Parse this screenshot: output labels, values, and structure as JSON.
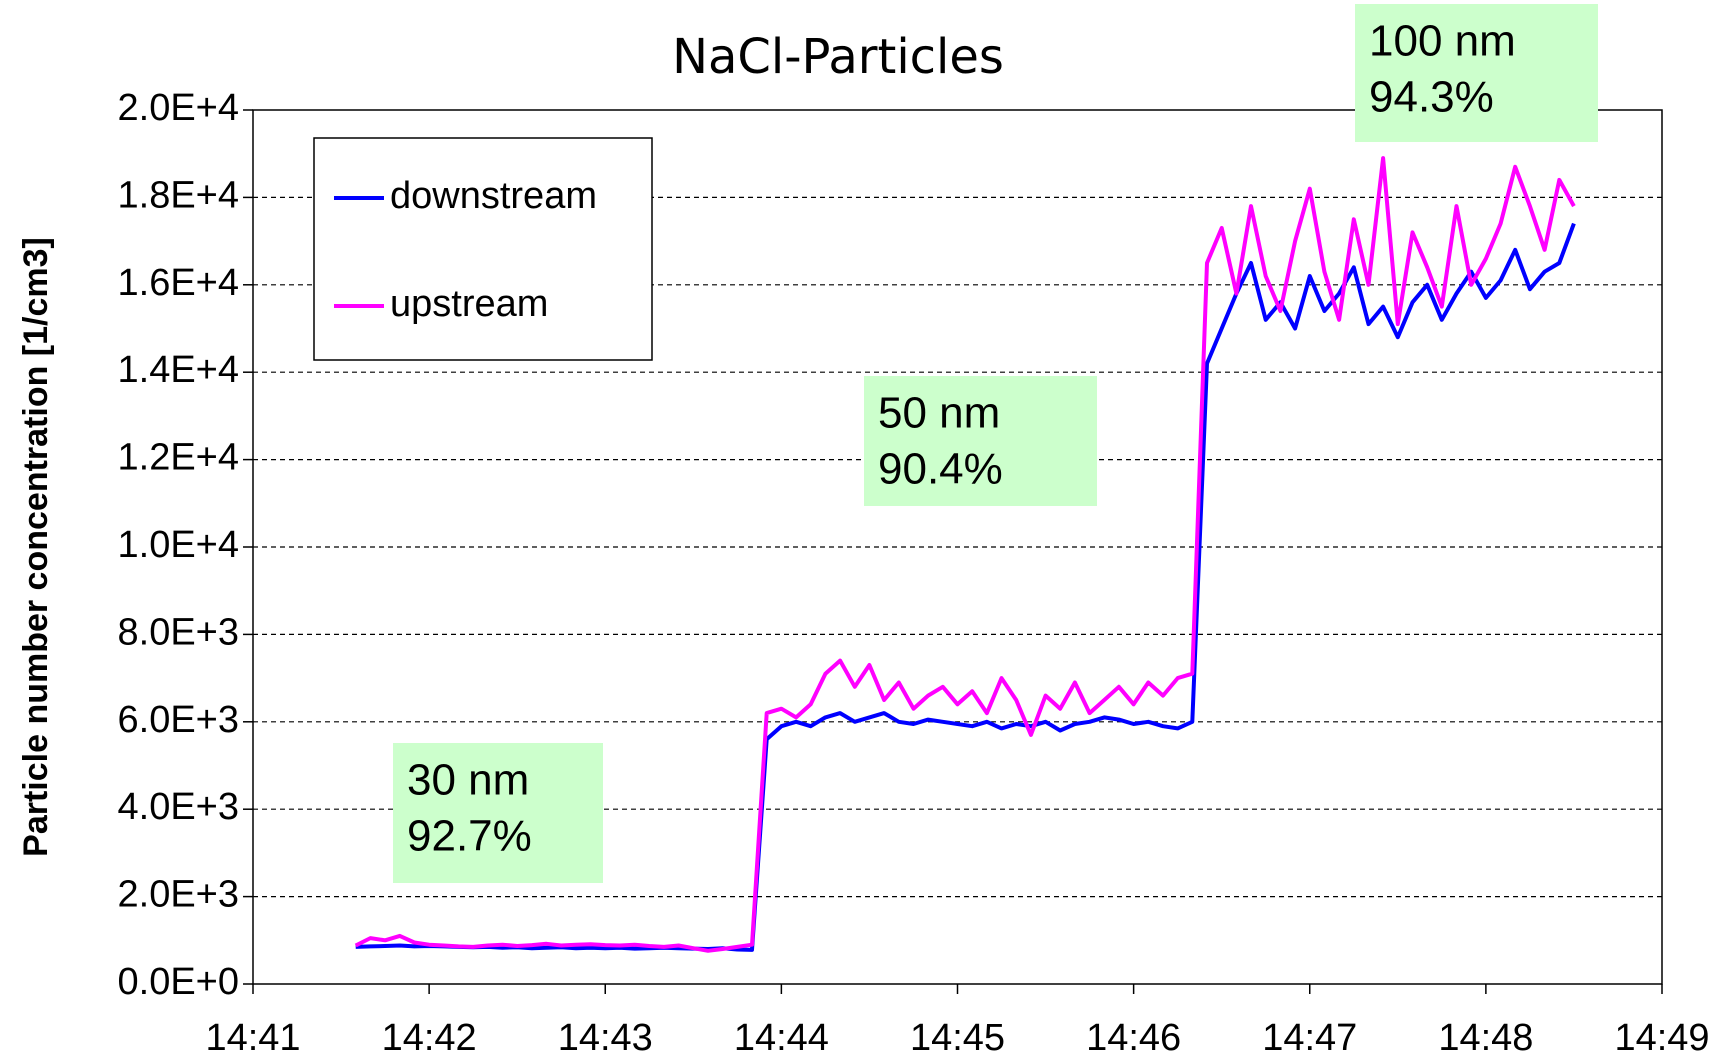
{
  "chart_data": {
    "type": "line",
    "title": "NaCl-Particles",
    "y_label": "Particle number concentration [1/cm3]",
    "x": [
      "14:41:35",
      "14:41:40",
      "14:41:45",
      "14:41:50",
      "14:41:55",
      "14:42:00",
      "14:42:05",
      "14:42:10",
      "14:42:15",
      "14:42:20",
      "14:42:25",
      "14:42:30",
      "14:42:35",
      "14:42:40",
      "14:42:45",
      "14:42:50",
      "14:42:55",
      "14:43:00",
      "14:43:05",
      "14:43:10",
      "14:43:15",
      "14:43:20",
      "14:43:25",
      "14:43:30",
      "14:43:35",
      "14:43:40",
      "14:43:45",
      "14:43:50",
      "14:43:55",
      "14:44:00",
      "14:44:05",
      "14:44:10",
      "14:44:15",
      "14:44:20",
      "14:44:25",
      "14:44:30",
      "14:44:35",
      "14:44:40",
      "14:44:45",
      "14:44:50",
      "14:44:55",
      "14:45:00",
      "14:45:05",
      "14:45:10",
      "14:45:15",
      "14:45:20",
      "14:45:25",
      "14:45:30",
      "14:45:35",
      "14:45:40",
      "14:45:45",
      "14:45:50",
      "14:45:55",
      "14:46:00",
      "14:46:05",
      "14:46:10",
      "14:46:15",
      "14:46:20",
      "14:46:25",
      "14:46:30",
      "14:46:35",
      "14:46:40",
      "14:46:45",
      "14:46:50",
      "14:46:55",
      "14:47:00",
      "14:47:05",
      "14:47:10",
      "14:47:15",
      "14:47:20",
      "14:47:25",
      "14:47:30",
      "14:47:35",
      "14:47:40",
      "14:47:45",
      "14:47:50",
      "14:47:55",
      "14:48:00",
      "14:48:05",
      "14:48:10",
      "14:48:15",
      "14:48:20",
      "14:48:25",
      "14:48:30"
    ],
    "series": [
      {
        "name": "downstream",
        "color": "#0000ff",
        "values": [
          850,
          860,
          870,
          880,
          860,
          870,
          860,
          850,
          840,
          850,
          830,
          840,
          820,
          830,
          840,
          820,
          830,
          820,
          830,
          810,
          820,
          830,
          820,
          810,
          800,
          820,
          790,
          780,
          5600,
          5900,
          6000,
          5900,
          6100,
          6200,
          6000,
          6100,
          6200,
          6000,
          5950,
          6050,
          6000,
          5950,
          5900,
          6000,
          5850,
          5950,
          5900,
          6000,
          5800,
          5950,
          6000,
          6100,
          6050,
          5950,
          6000,
          5900,
          5850,
          6000,
          14200,
          15000,
          15800,
          16500,
          15200,
          15600,
          15000,
          16200,
          15400,
          15800,
          16400,
          15100,
          15500,
          14800,
          15600,
          16000,
          15200,
          15800,
          16300,
          15700,
          16100,
          16800,
          15900,
          16300,
          16500,
          17400
        ]
      },
      {
        "name": "upstream",
        "color": "#ff00ff",
        "values": [
          880,
          1050,
          1000,
          1100,
          950,
          900,
          880,
          860,
          850,
          880,
          900,
          870,
          890,
          920,
          880,
          900,
          910,
          890,
          880,
          900,
          870,
          850,
          880,
          820,
          760,
          800,
          850,
          900,
          6200,
          6300,
          6100,
          6400,
          7100,
          7400,
          6800,
          7300,
          6500,
          6900,
          6300,
          6600,
          6800,
          6400,
          6700,
          6200,
          7000,
          6500,
          5700,
          6600,
          6300,
          6900,
          6200,
          6500,
          6800,
          6400,
          6900,
          6600,
          7000,
          7100,
          16500,
          17300,
          15800,
          17800,
          16200,
          15400,
          17000,
          18200,
          16300,
          15200,
          17500,
          16000,
          18900,
          15100,
          17200,
          16400,
          15500,
          17800,
          16000,
          16600,
          17400,
          18700,
          17800,
          16800,
          18400,
          17800
        ]
      }
    ],
    "xlim": [
      "14:41",
      "14:49"
    ],
    "xticks": [
      "14:41",
      "14:42",
      "14:43",
      "14:44",
      "14:45",
      "14:46",
      "14:47",
      "14:48",
      "14:49"
    ],
    "ylim": [
      0,
      20000
    ],
    "yticks": [
      {
        "value": 0,
        "label": "0.0E+0"
      },
      {
        "value": 2000,
        "label": "2.0E+3"
      },
      {
        "value": 4000,
        "label": "4.0E+3"
      },
      {
        "value": 6000,
        "label": "6.0E+3"
      },
      {
        "value": 8000,
        "label": "8.0E+3"
      },
      {
        "value": 10000,
        "label": "1.0E+4"
      },
      {
        "value": 12000,
        "label": "1.2E+4"
      },
      {
        "value": 14000,
        "label": "1.4E+4"
      },
      {
        "value": 16000,
        "label": "1.6E+4"
      },
      {
        "value": 18000,
        "label": "1.8E+4"
      },
      {
        "value": 20000,
        "label": "2.0E+4"
      }
    ],
    "grid": true,
    "legend": "upper left",
    "annotations": [
      {
        "lines": [
          "30 nm",
          "92.7%"
        ]
      },
      {
        "lines": [
          "50 nm",
          "90.4%"
        ]
      },
      {
        "lines": [
          "100 nm",
          "94.3%"
        ]
      }
    ]
  }
}
